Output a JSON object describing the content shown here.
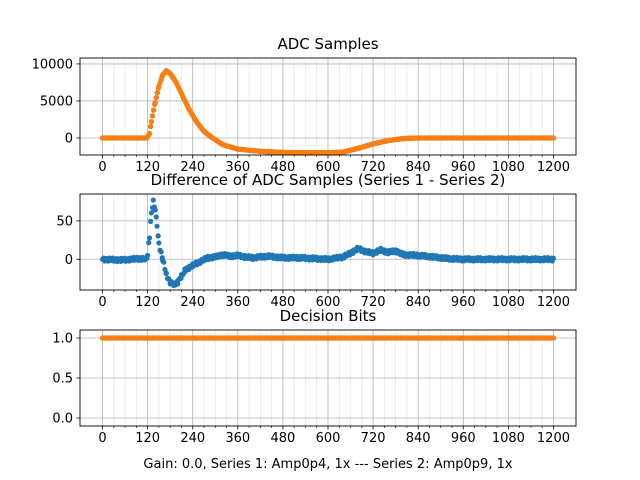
{
  "figure": {
    "footer": "Gain: 0.0, Series 1: Amp0p4, 1x --- Series 2: Amp0p9, 1x"
  },
  "colors": {
    "series1": "#1f77b4",
    "series2": "#ff7f0e",
    "grid": "#b0b0b0"
  },
  "chart_data": [
    {
      "type": "scatter",
      "title": "ADC Samples",
      "xlabel": "",
      "ylabel": "",
      "xlim": [
        -60,
        1260
      ],
      "ylim": [
        -2300,
        10800
      ],
      "xticks": [
        0,
        120,
        240,
        360,
        480,
        600,
        720,
        840,
        960,
        1080,
        1200
      ],
      "yticks": [
        0,
        5000,
        10000
      ],
      "grid": true,
      "series": [
        {
          "name": "Series 1",
          "color": "#1f77b4",
          "points": [
            [
              0,
              0
            ],
            [
              100,
              0
            ],
            [
              118,
              0
            ],
            [
              125,
              600
            ],
            [
              130,
              2200
            ],
            [
              140,
              4800
            ],
            [
              150,
              7000
            ],
            [
              160,
              8500
            ],
            [
              170,
              9100
            ],
            [
              180,
              8700
            ],
            [
              195,
              7600
            ],
            [
              210,
              6000
            ],
            [
              230,
              3900
            ],
            [
              250,
              2200
            ],
            [
              270,
              900
            ],
            [
              290,
              100
            ],
            [
              320,
              -900
            ],
            [
              360,
              -1500
            ],
            [
              420,
              -1800
            ],
            [
              480,
              -1950
            ],
            [
              600,
              -2000
            ],
            [
              640,
              -1900
            ],
            [
              680,
              -1400
            ],
            [
              720,
              -800
            ],
            [
              760,
              -350
            ],
            [
              800,
              -80
            ],
            [
              840,
              0
            ],
            [
              1200,
              0
            ]
          ]
        },
        {
          "name": "Series 2",
          "color": "#ff7f0e",
          "points": [
            [
              0,
              0
            ],
            [
              100,
              0
            ],
            [
              118,
              0
            ],
            [
              125,
              600
            ],
            [
              130,
              2200
            ],
            [
              140,
              4800
            ],
            [
              150,
              7000
            ],
            [
              160,
              8500
            ],
            [
              170,
              9100
            ],
            [
              180,
              8700
            ],
            [
              195,
              7600
            ],
            [
              210,
              6000
            ],
            [
              230,
              3900
            ],
            [
              250,
              2200
            ],
            [
              270,
              900
            ],
            [
              290,
              100
            ],
            [
              320,
              -900
            ],
            [
              360,
              -1500
            ],
            [
              420,
              -1800
            ],
            [
              480,
              -1950
            ],
            [
              600,
              -2000
            ],
            [
              640,
              -1900
            ],
            [
              680,
              -1400
            ],
            [
              720,
              -800
            ],
            [
              760,
              -350
            ],
            [
              800,
              -80
            ],
            [
              840,
              0
            ],
            [
              1200,
              0
            ]
          ]
        }
      ]
    },
    {
      "type": "scatter",
      "title": "Difference of ADC Samples (Series 1 - Series 2)",
      "xlabel": "",
      "ylabel": "",
      "xlim": [
        -60,
        1260
      ],
      "ylim": [
        -40,
        85
      ],
      "xticks": [
        0,
        120,
        240,
        360,
        480,
        600,
        720,
        840,
        960,
        1080,
        1200
      ],
      "yticks": [
        0,
        50
      ],
      "grid": true,
      "series": [
        {
          "name": "Series 1 - Series 2",
          "color": "#1f77b4",
          "points": [
            [
              0,
              0
            ],
            [
              50,
              -1
            ],
            [
              100,
              1
            ],
            [
              115,
              0
            ],
            [
              120,
              5
            ],
            [
              125,
              30
            ],
            [
              130,
              60
            ],
            [
              135,
              75
            ],
            [
              140,
              65
            ],
            [
              145,
              45
            ],
            [
              150,
              20
            ],
            [
              160,
              0
            ],
            [
              170,
              -20
            ],
            [
              180,
              -30
            ],
            [
              190,
              -33
            ],
            [
              200,
              -30
            ],
            [
              210,
              -22
            ],
            [
              220,
              -14
            ],
            [
              240,
              -8
            ],
            [
              260,
              -3
            ],
            [
              280,
              2
            ],
            [
              300,
              3
            ],
            [
              320,
              6
            ],
            [
              340,
              4
            ],
            [
              360,
              5
            ],
            [
              380,
              3
            ],
            [
              400,
              2
            ],
            [
              440,
              4
            ],
            [
              480,
              2
            ],
            [
              520,
              2
            ],
            [
              560,
              1
            ],
            [
              600,
              0
            ],
            [
              640,
              3
            ],
            [
              660,
              8
            ],
            [
              680,
              14
            ],
            [
              700,
              10
            ],
            [
              720,
              8
            ],
            [
              740,
              12
            ],
            [
              760,
              9
            ],
            [
              780,
              11
            ],
            [
              800,
              6
            ],
            [
              840,
              5
            ],
            [
              880,
              3
            ],
            [
              920,
              1
            ],
            [
              960,
              0
            ],
            [
              1000,
              0
            ],
            [
              1080,
              0
            ],
            [
              1200,
              0
            ]
          ]
        }
      ]
    },
    {
      "type": "scatter",
      "title": "Decision Bits",
      "xlabel": "Gain: 0.0, Series 1: Amp0p4, 1x --- Series 2: Amp0p9, 1x",
      "ylabel": "",
      "xlim": [
        -60,
        1260
      ],
      "ylim": [
        -0.1,
        1.1
      ],
      "xticks": [
        0,
        120,
        240,
        360,
        480,
        600,
        720,
        840,
        960,
        1080,
        1200
      ],
      "yticks": [
        0.0,
        0.5,
        1.0
      ],
      "grid": true,
      "series": [
        {
          "name": "Series 1",
          "color": "#1f77b4",
          "points": [
            [
              0,
              1
            ],
            [
              1200,
              1
            ]
          ]
        },
        {
          "name": "Series 2",
          "color": "#ff7f0e",
          "points": [
            [
              0,
              1
            ],
            [
              1200,
              1
            ]
          ]
        }
      ]
    }
  ]
}
